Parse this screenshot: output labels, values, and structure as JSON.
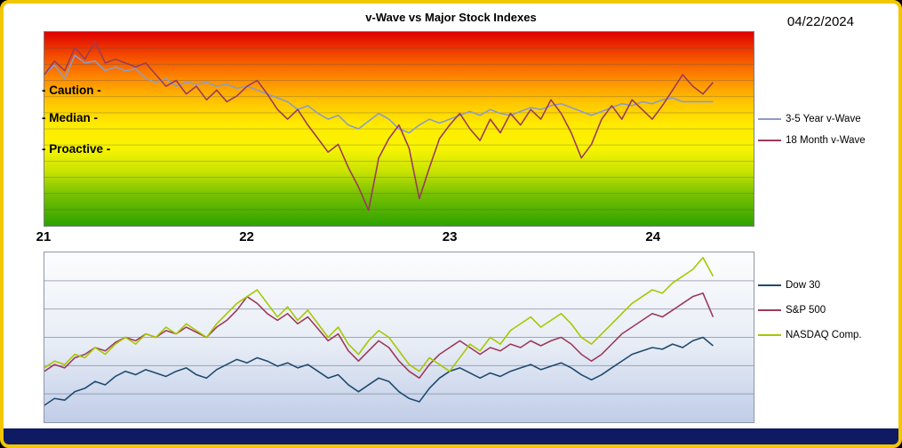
{
  "page": {
    "title": "v-Wave vs Major Stock Indexes",
    "date": "04/22/2024",
    "frame_border_color": "#f3c700",
    "bottom_bar_color": "#0e1b63"
  },
  "chart_data": [
    {
      "type": "line",
      "title": "v-Wave vs Major Stock Indexes",
      "x_axis": "year (2-digit)",
      "xlim": [
        21,
        24.5
      ],
      "xticks": [
        21,
        22,
        23,
        24
      ],
      "ylim": [
        0,
        100
      ],
      "y_note": "no numeric y-axis shown; values estimated as % of plot height (0=bottom, 100=top)",
      "legend_position": "right",
      "grid": "horizontal",
      "background_gradient": [
        [
          "0%",
          "#df0000"
        ],
        [
          "12%",
          "#f34a00"
        ],
        [
          "24%",
          "#ff8a00"
        ],
        [
          "36%",
          "#ffc400"
        ],
        [
          "48%",
          "#ffeb00"
        ],
        [
          "60%",
          "#f8f400"
        ],
        [
          "72%",
          "#c8e300"
        ],
        [
          "84%",
          "#76c100"
        ],
        [
          "100%",
          "#2ea200"
        ]
      ],
      "zone_labels": [
        {
          "label": "- Caution -",
          "y": 69
        },
        {
          "label": "- Median -",
          "y": 55
        },
        {
          "label": "- Proactive -",
          "y": 39
        }
      ],
      "x": [
        21,
        21.05,
        21.1,
        21.15,
        21.2,
        21.25,
        21.3,
        21.35,
        21.4,
        21.45,
        21.5,
        21.55,
        21.6,
        21.65,
        21.7,
        21.75,
        21.8,
        21.85,
        21.9,
        21.95,
        22,
        22.05,
        22.1,
        22.15,
        22.2,
        22.25,
        22.3,
        22.35,
        22.4,
        22.45,
        22.5,
        22.55,
        22.6,
        22.65,
        22.7,
        22.75,
        22.8,
        22.85,
        22.9,
        22.95,
        23,
        23.05,
        23.1,
        23.15,
        23.2,
        23.25,
        23.3,
        23.35,
        23.4,
        23.45,
        23.5,
        23.55,
        23.6,
        23.65,
        23.7,
        23.75,
        23.8,
        23.85,
        23.9,
        23.95,
        24,
        24.05,
        24.1,
        24.15,
        24.2,
        24.25,
        24.3
      ],
      "series": [
        {
          "name": "3-5 Year v-Wave",
          "color": "#8c9cc6",
          "values": [
            78,
            83,
            76,
            88,
            84,
            85,
            80,
            82,
            80,
            81,
            76,
            74,
            76,
            72,
            74,
            73,
            74,
            72,
            73,
            71,
            72,
            70,
            68,
            66,
            64,
            60,
            62,
            58,
            55,
            57,
            52,
            50,
            54,
            58,
            55,
            50,
            48,
            52,
            55,
            53,
            55,
            57,
            59,
            57,
            60,
            58,
            57,
            59,
            61,
            60,
            62,
            63,
            61,
            59,
            57,
            59,
            61,
            63,
            62,
            64,
            63,
            65,
            66,
            64,
            64,
            64,
            64
          ]
        },
        {
          "name": "18 Month v-Wave",
          "color": "#9c3a5c",
          "values": [
            78,
            85,
            80,
            92,
            86,
            95,
            84,
            86,
            84,
            82,
            84,
            78,
            72,
            75,
            68,
            72,
            65,
            70,
            64,
            67,
            72,
            75,
            68,
            60,
            55,
            60,
            52,
            45,
            38,
            42,
            30,
            20,
            8,
            35,
            45,
            52,
            40,
            14,
            30,
            45,
            52,
            58,
            50,
            44,
            55,
            48,
            58,
            52,
            60,
            55,
            65,
            58,
            48,
            35,
            42,
            55,
            62,
            55,
            65,
            60,
            55,
            62,
            70,
            78,
            72,
            68,
            74
          ]
        }
      ]
    },
    {
      "type": "line",
      "x_axis": "year (2-digit, shares axis with top chart)",
      "xlim": [
        21,
        24.5
      ],
      "ylim": [
        0,
        100
      ],
      "y_note": "no numeric y-axis shown; values estimated as % of plot height (0=bottom, 100=top)",
      "legend_position": "right",
      "grid": "horizontal",
      "background_gradient": [
        [
          "0%",
          "#fcfdfe"
        ],
        [
          "55%",
          "#e7ecf5"
        ],
        [
          "100%",
          "#c0cde8"
        ]
      ],
      "x": [
        21,
        21.05,
        21.1,
        21.15,
        21.2,
        21.25,
        21.3,
        21.35,
        21.4,
        21.45,
        21.5,
        21.55,
        21.6,
        21.65,
        21.7,
        21.75,
        21.8,
        21.85,
        21.9,
        21.95,
        22,
        22.05,
        22.1,
        22.15,
        22.2,
        22.25,
        22.3,
        22.35,
        22.4,
        22.45,
        22.5,
        22.55,
        22.6,
        22.65,
        22.7,
        22.75,
        22.8,
        22.85,
        22.9,
        22.95,
        23,
        23.05,
        23.1,
        23.15,
        23.2,
        23.25,
        23.3,
        23.35,
        23.4,
        23.45,
        23.5,
        23.55,
        23.6,
        23.65,
        23.7,
        23.75,
        23.8,
        23.85,
        23.9,
        23.95,
        24,
        24.05,
        24.1,
        24.15,
        24.2,
        24.25,
        24.3
      ],
      "series": [
        {
          "name": "Dow 30",
          "color": "#1e4a6e",
          "values": [
            10,
            14,
            13,
            18,
            20,
            24,
            22,
            27,
            30,
            28,
            31,
            29,
            27,
            30,
            32,
            28,
            26,
            31,
            34,
            37,
            35,
            38,
            36,
            33,
            35,
            32,
            34,
            30,
            26,
            28,
            22,
            18,
            22,
            26,
            24,
            18,
            14,
            12,
            20,
            26,
            30,
            32,
            29,
            26,
            29,
            27,
            30,
            32,
            34,
            31,
            33,
            35,
            32,
            28,
            25,
            28,
            32,
            36,
            40,
            42,
            44,
            43,
            46,
            44,
            48,
            50,
            45
          ]
        },
        {
          "name": "S&P 500",
          "color": "#9c3a5c",
          "values": [
            30,
            34,
            32,
            38,
            40,
            44,
            42,
            47,
            50,
            48,
            52,
            50,
            54,
            52,
            56,
            53,
            50,
            56,
            60,
            66,
            74,
            70,
            64,
            60,
            64,
            58,
            62,
            55,
            48,
            52,
            42,
            36,
            42,
            48,
            44,
            36,
            30,
            26,
            34,
            40,
            44,
            48,
            44,
            40,
            44,
            42,
            46,
            44,
            48,
            45,
            48,
            50,
            46,
            40,
            36,
            40,
            46,
            52,
            56,
            60,
            64,
            62,
            66,
            70,
            74,
            76,
            62
          ]
        },
        {
          "name": "NASDAQ Comp.",
          "color": "#a6c800",
          "values": [
            32,
            36,
            34,
            40,
            38,
            44,
            40,
            46,
            50,
            46,
            52,
            50,
            56,
            52,
            58,
            54,
            50,
            58,
            64,
            70,
            74,
            78,
            70,
            62,
            68,
            60,
            66,
            58,
            50,
            56,
            46,
            40,
            48,
            54,
            50,
            42,
            34,
            30,
            38,
            34,
            30,
            38,
            46,
            42,
            50,
            46,
            54,
            58,
            62,
            56,
            60,
            64,
            58,
            50,
            46,
            52,
            58,
            64,
            70,
            74,
            78,
            76,
            82,
            86,
            90,
            97,
            86
          ]
        }
      ]
    }
  ]
}
